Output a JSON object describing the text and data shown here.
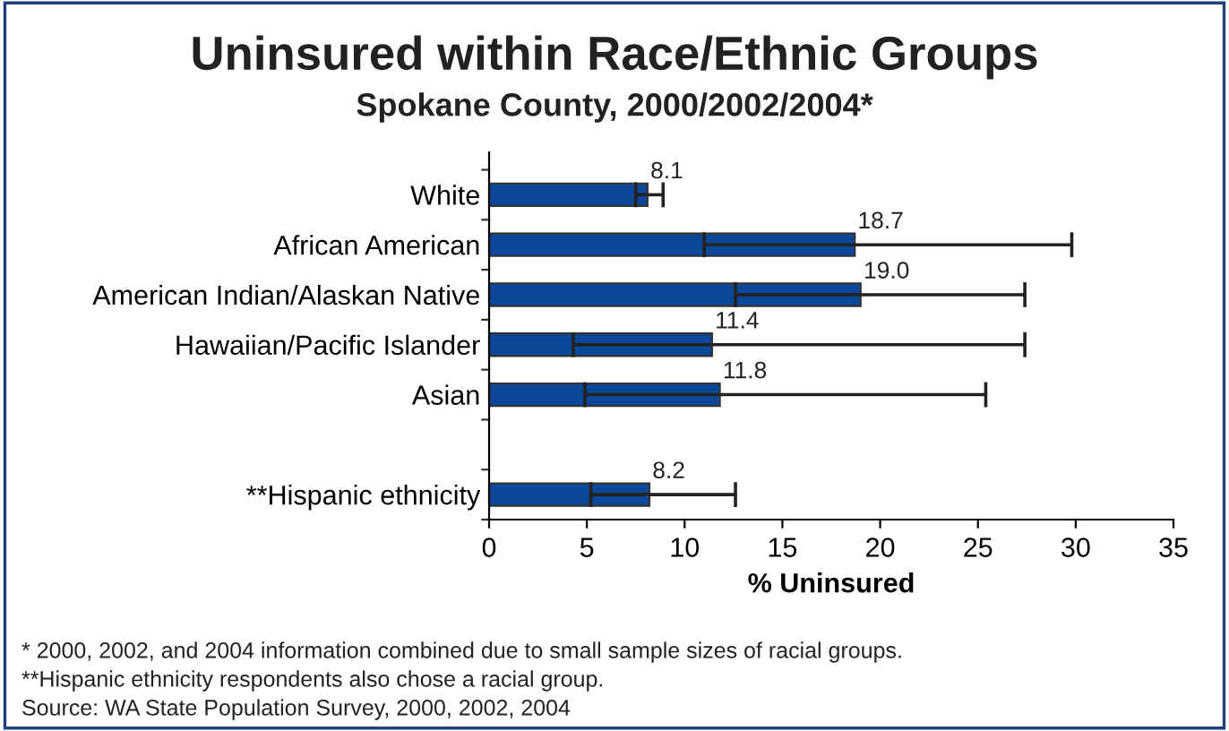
{
  "chart_data": {
    "type": "bar",
    "orientation": "horizontal",
    "title": "Uninsured within Race/Ethnic Groups",
    "subtitle": "Spokane County, 2000/2002/2004*",
    "xlabel": "% Uninsured",
    "categories": [
      "White",
      "African American",
      "American Indian/Alaskan Native",
      "Hawaiian/Pacific Islander",
      "Asian",
      null,
      "**Hispanic ethnicity"
    ],
    "values": [
      8.1,
      18.7,
      19.0,
      11.4,
      11.8,
      null,
      8.2
    ],
    "errors": [
      [
        7.5,
        8.9
      ],
      [
        11.0,
        29.8
      ],
      [
        12.6,
        27.4
      ],
      [
        4.3,
        27.4
      ],
      [
        4.9,
        25.4
      ],
      null,
      [
        5.2,
        12.6
      ]
    ],
    "value_labels": [
      "8.1",
      "18.7",
      "19.0",
      "11.4",
      "11.8",
      null,
      "8.2"
    ],
    "color": "#0b4899",
    "xlim": [
      0,
      35
    ],
    "xticks": [
      0,
      5,
      10,
      15,
      20,
      25,
      30,
      35
    ],
    "grid": false,
    "legend": false,
    "annotations": [
      "* 2000, 2002, and 2004 information combined due to small sample sizes of racial groups.",
      "**Hispanic ethnicity respondents also chose a racial group.",
      "Source: WA State Population Survey, 2000, 2002, 2004"
    ]
  }
}
